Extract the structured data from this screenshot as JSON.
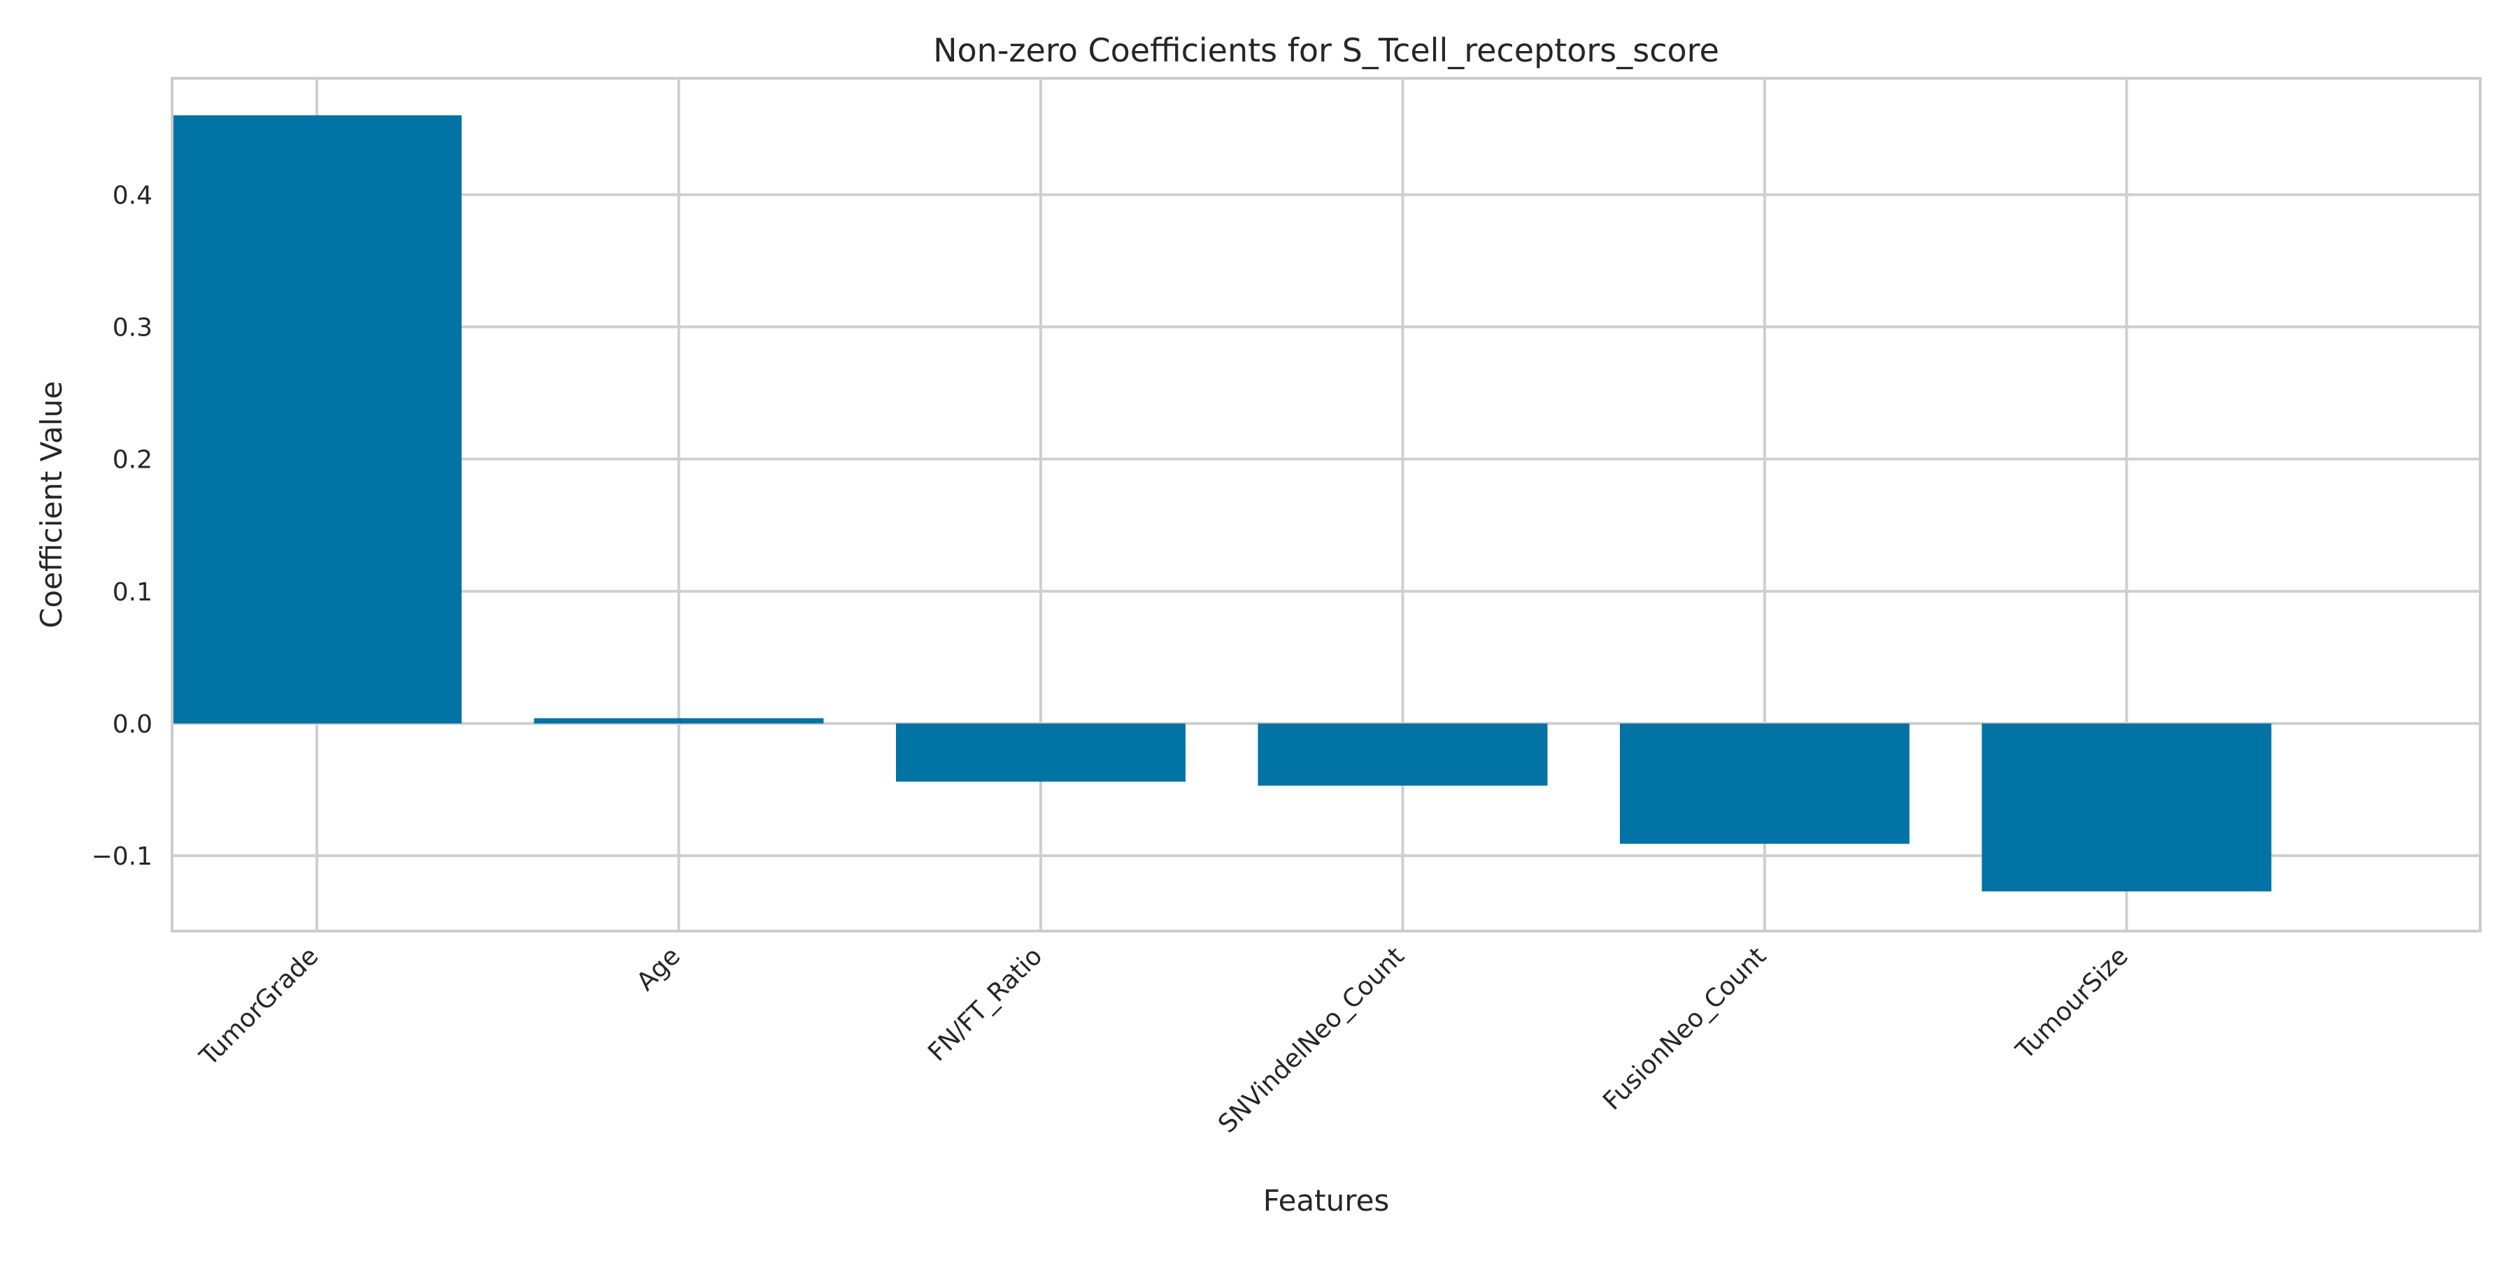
{
  "chart_data": {
    "type": "bar",
    "title": "Non-zero Coefficients for S_Tcell_receptors_score",
    "xlabel": "Features",
    "ylabel": "Coefficient Value",
    "categories": [
      "TumorGrade",
      "Age",
      "FN/FT_Ratio",
      "SNVindelNeo_Count",
      "FusionNeo_Count",
      "TumourSize"
    ],
    "values": [
      0.46,
      0.004,
      -0.044,
      -0.047,
      -0.091,
      -0.127
    ],
    "ylim": [
      -0.157,
      0.488
    ],
    "yticks": [
      -0.1,
      0.0,
      0.1,
      0.2,
      0.3,
      0.4
    ],
    "ytick_labels": [
      "−0.1",
      "0.0",
      "0.1",
      "0.2",
      "0.3",
      "0.4"
    ],
    "grid": true,
    "bar_color": "#0173a5",
    "grid_color": "#cfcfcf",
    "spine_color": "#cccccc"
  }
}
